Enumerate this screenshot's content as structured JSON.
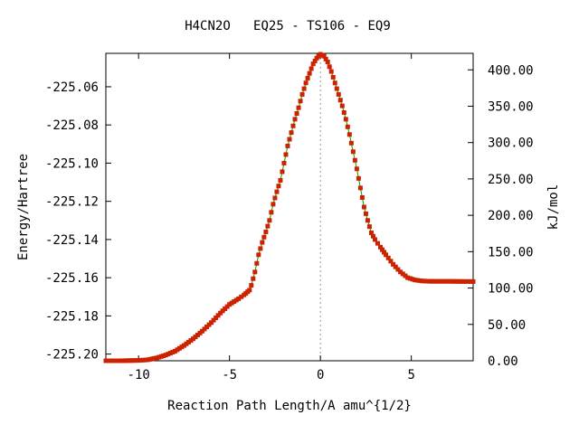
{
  "chart_data": {
    "type": "line",
    "title": "H4CN2O   EQ25 - TS106 - EQ9",
    "xlabel": "Reaction Path Length/A amu^{1/2}",
    "ylabel": "Energy/Hartree",
    "y2label": "kJ/mol",
    "xlim": [
      -11.8,
      8.4
    ],
    "ylim": [
      -225.2035,
      -225.0425
    ],
    "y2lim": [
      0,
      422.7
    ],
    "x_ticks": [
      -10,
      -5,
      0,
      5
    ],
    "x_tick_labels": [
      "-10",
      "-5",
      "0",
      "5"
    ],
    "y_ticks": [
      -225.2,
      -225.18,
      -225.16,
      -225.14,
      -225.12,
      -225.1,
      -225.08,
      -225.06
    ],
    "y_tick_labels": [
      "-225.20",
      "-225.18",
      "-225.16",
      "-225.14",
      "-225.12",
      "-225.10",
      "-225.08",
      "-225.06"
    ],
    "y2_ticks": [
      0,
      50,
      100,
      150,
      200,
      250,
      300,
      350,
      400
    ],
    "y2_tick_labels": [
      "0.00",
      "50.00",
      "100.00",
      "150.00",
      "200.00",
      "250.00",
      "300.00",
      "350.00",
      "400.00"
    ],
    "ts_marker_x": 0,
    "grid": false,
    "colors": {
      "line": "#00a000",
      "marker": "#cc2200",
      "ts_line": "#999999"
    },
    "series": [
      {
        "x": [
          -11.8,
          -11.0,
          -10.5,
          -10.0,
          -9.5,
          -9.0,
          -8.5,
          -8.0,
          -7.5,
          -7.0,
          -6.5,
          -6.0,
          -5.5,
          -5.0,
          -4.5,
          -4.2,
          -3.9,
          -3.8,
          -3.6,
          -3.4,
          -3.2,
          -3.0,
          -2.8,
          -2.6,
          -2.4,
          -2.2,
          -2.0,
          -1.8,
          -1.6,
          -1.4,
          -1.2,
          -1.0,
          -0.8,
          -0.6,
          -0.4,
          -0.2,
          0.0,
          0.2,
          0.4,
          0.6,
          0.8,
          1.0,
          1.2,
          1.4,
          1.6,
          1.8,
          2.0,
          2.2,
          2.4,
          2.6,
          2.8,
          3.0,
          3.3,
          3.6,
          4.0,
          4.4,
          4.8,
          5.2,
          5.6,
          6.0,
          7.0,
          8.0,
          8.4
        ],
        "y": [
          -225.2035,
          -225.2035,
          -225.2034,
          -225.2033,
          -225.203,
          -225.202,
          -225.2005,
          -225.1985,
          -225.1955,
          -225.192,
          -225.188,
          -225.1835,
          -225.1785,
          -225.174,
          -225.171,
          -225.169,
          -225.1665,
          -225.164,
          -225.157,
          -225.148,
          -225.1415,
          -225.136,
          -225.13,
          -225.1215,
          -225.115,
          -225.109,
          -225.1,
          -225.091,
          -225.084,
          -225.077,
          -225.071,
          -225.064,
          -225.058,
          -225.053,
          -225.048,
          -225.045,
          -225.043,
          -225.044,
          -225.047,
          -225.052,
          -225.058,
          -225.064,
          -225.07,
          -225.077,
          -225.085,
          -225.094,
          -225.103,
          -225.113,
          -225.123,
          -225.13,
          -225.1365,
          -225.14,
          -225.144,
          -225.148,
          -225.153,
          -225.157,
          -225.16,
          -225.1612,
          -225.1617,
          -225.1619,
          -225.1619,
          -225.162,
          -225.162
        ]
      }
    ]
  }
}
